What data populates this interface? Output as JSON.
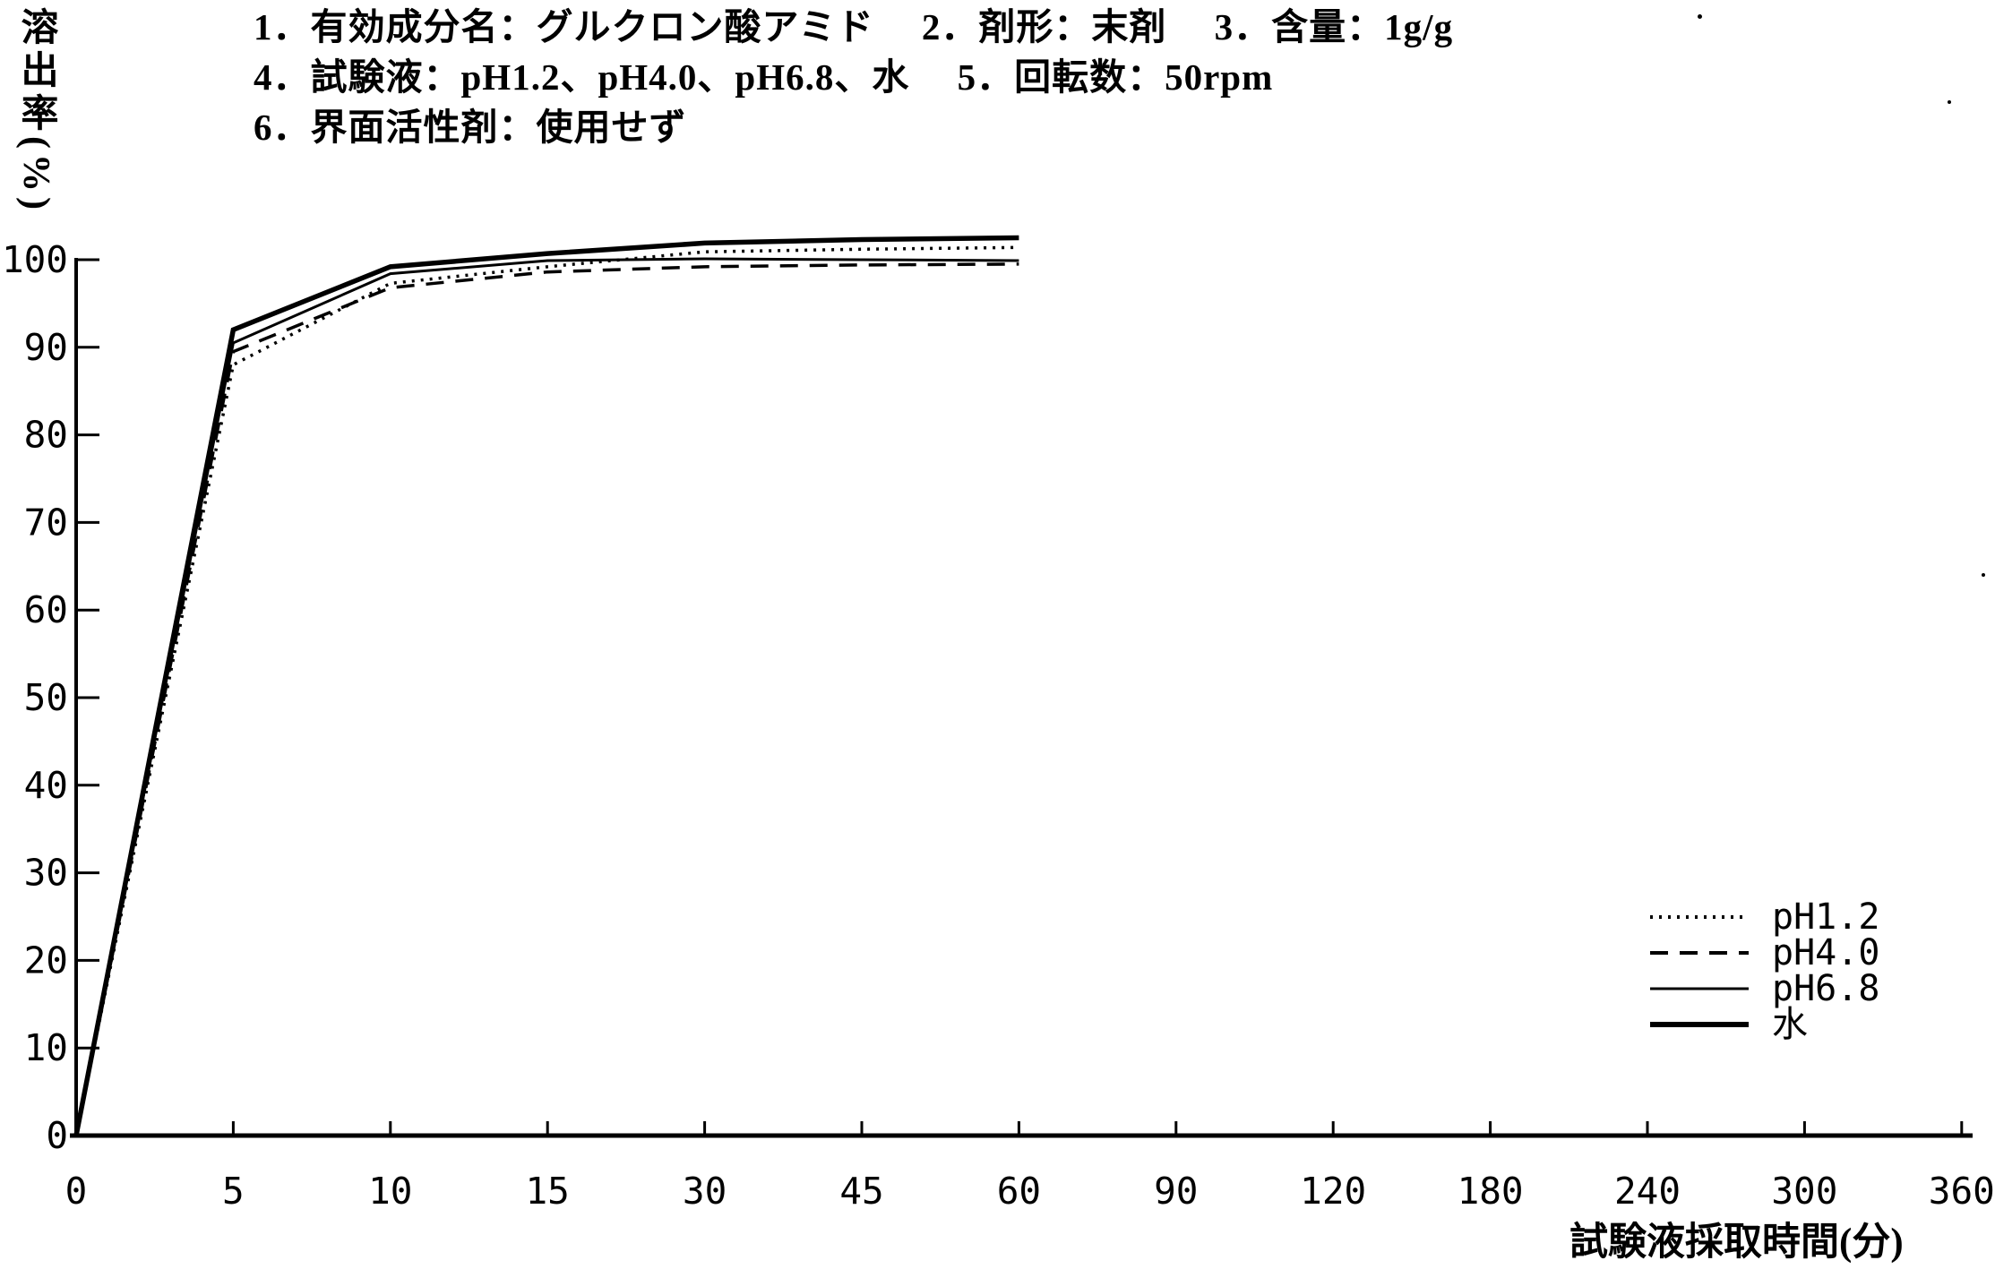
{
  "colors": {
    "ink": "#000000",
    "background": "#ffffff"
  },
  "header": {
    "lines": [
      "1．有効成分名：グルクロン酸アミド　 2．剤形：末剤　 3．含量：1g/g",
      "4．試験液：pH1.2、pH4.0、pH6.8、水　 5．回転数：50rpm",
      "6．界面活性剤：使用せず"
    ]
  },
  "chart_data": {
    "type": "line",
    "title": "",
    "xlabel": "試験液採取時間(分)",
    "ylabel": "溶出率(%)",
    "x_ticks": [
      0,
      5,
      10,
      15,
      30,
      45,
      60,
      90,
      120,
      180,
      240,
      300,
      360
    ],
    "x_axis_scale": "category-spaced (equal spacing between listed ticks)",
    "y_ticks": [
      0,
      10,
      20,
      30,
      40,
      50,
      60,
      70,
      80,
      90,
      100
    ],
    "ylim": [
      0,
      100
    ],
    "grid": false,
    "legend_position": "lower-right-inside",
    "x_values": [
      0,
      5,
      10,
      15,
      30,
      45,
      60
    ],
    "series": [
      {
        "name": "pH1.2",
        "line_style": "dotted",
        "values": [
          0,
          88.0,
          97.3,
          99.2,
          100.9,
          101.2,
          101.4
        ]
      },
      {
        "name": "pH4.0",
        "line_style": "dashed",
        "values": [
          0,
          89.5,
          96.8,
          98.6,
          99.2,
          99.4,
          99.5
        ]
      },
      {
        "name": "pH6.8",
        "line_style": "solid-thin",
        "values": [
          0,
          90.5,
          98.4,
          99.9,
          100.1,
          100.0,
          99.9
        ]
      },
      {
        "name": "水",
        "line_style": "solid-thick",
        "values": [
          0,
          92.0,
          99.2,
          100.7,
          101.9,
          102.3,
          102.5
        ]
      }
    ]
  }
}
